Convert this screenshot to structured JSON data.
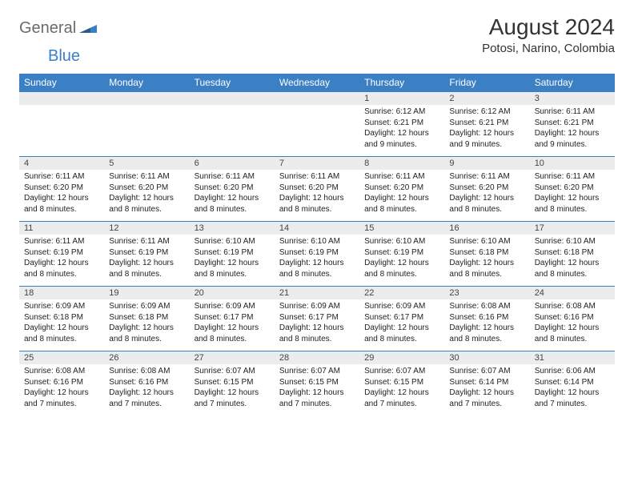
{
  "brand": {
    "general": "General",
    "blue": "Blue",
    "icon_color": "#3b7fc4"
  },
  "title": "August 2024",
  "location": "Potosi, Narino, Colombia",
  "colors": {
    "header_bg": "#3b7fc4",
    "header_fg": "#ffffff",
    "daynum_bg": "#ececec",
    "border": "#3b7fc4",
    "text": "#222222"
  },
  "day_headers": [
    "Sunday",
    "Monday",
    "Tuesday",
    "Wednesday",
    "Thursday",
    "Friday",
    "Saturday"
  ],
  "weeks": [
    [
      null,
      null,
      null,
      null,
      {
        "n": "1",
        "sr": "6:12 AM",
        "ss": "6:21 PM",
        "dl": "12 hours and 9 minutes."
      },
      {
        "n": "2",
        "sr": "6:12 AM",
        "ss": "6:21 PM",
        "dl": "12 hours and 9 minutes."
      },
      {
        "n": "3",
        "sr": "6:11 AM",
        "ss": "6:21 PM",
        "dl": "12 hours and 9 minutes."
      }
    ],
    [
      {
        "n": "4",
        "sr": "6:11 AM",
        "ss": "6:20 PM",
        "dl": "12 hours and 8 minutes."
      },
      {
        "n": "5",
        "sr": "6:11 AM",
        "ss": "6:20 PM",
        "dl": "12 hours and 8 minutes."
      },
      {
        "n": "6",
        "sr": "6:11 AM",
        "ss": "6:20 PM",
        "dl": "12 hours and 8 minutes."
      },
      {
        "n": "7",
        "sr": "6:11 AM",
        "ss": "6:20 PM",
        "dl": "12 hours and 8 minutes."
      },
      {
        "n": "8",
        "sr": "6:11 AM",
        "ss": "6:20 PM",
        "dl": "12 hours and 8 minutes."
      },
      {
        "n": "9",
        "sr": "6:11 AM",
        "ss": "6:20 PM",
        "dl": "12 hours and 8 minutes."
      },
      {
        "n": "10",
        "sr": "6:11 AM",
        "ss": "6:20 PM",
        "dl": "12 hours and 8 minutes."
      }
    ],
    [
      {
        "n": "11",
        "sr": "6:11 AM",
        "ss": "6:19 PM",
        "dl": "12 hours and 8 minutes."
      },
      {
        "n": "12",
        "sr": "6:11 AM",
        "ss": "6:19 PM",
        "dl": "12 hours and 8 minutes."
      },
      {
        "n": "13",
        "sr": "6:10 AM",
        "ss": "6:19 PM",
        "dl": "12 hours and 8 minutes."
      },
      {
        "n": "14",
        "sr": "6:10 AM",
        "ss": "6:19 PM",
        "dl": "12 hours and 8 minutes."
      },
      {
        "n": "15",
        "sr": "6:10 AM",
        "ss": "6:19 PM",
        "dl": "12 hours and 8 minutes."
      },
      {
        "n": "16",
        "sr": "6:10 AM",
        "ss": "6:18 PM",
        "dl": "12 hours and 8 minutes."
      },
      {
        "n": "17",
        "sr": "6:10 AM",
        "ss": "6:18 PM",
        "dl": "12 hours and 8 minutes."
      }
    ],
    [
      {
        "n": "18",
        "sr": "6:09 AM",
        "ss": "6:18 PM",
        "dl": "12 hours and 8 minutes."
      },
      {
        "n": "19",
        "sr": "6:09 AM",
        "ss": "6:18 PM",
        "dl": "12 hours and 8 minutes."
      },
      {
        "n": "20",
        "sr": "6:09 AM",
        "ss": "6:17 PM",
        "dl": "12 hours and 8 minutes."
      },
      {
        "n": "21",
        "sr": "6:09 AM",
        "ss": "6:17 PM",
        "dl": "12 hours and 8 minutes."
      },
      {
        "n": "22",
        "sr": "6:09 AM",
        "ss": "6:17 PM",
        "dl": "12 hours and 8 minutes."
      },
      {
        "n": "23",
        "sr": "6:08 AM",
        "ss": "6:16 PM",
        "dl": "12 hours and 8 minutes."
      },
      {
        "n": "24",
        "sr": "6:08 AM",
        "ss": "6:16 PM",
        "dl": "12 hours and 8 minutes."
      }
    ],
    [
      {
        "n": "25",
        "sr": "6:08 AM",
        "ss": "6:16 PM",
        "dl": "12 hours and 7 minutes."
      },
      {
        "n": "26",
        "sr": "6:08 AM",
        "ss": "6:16 PM",
        "dl": "12 hours and 7 minutes."
      },
      {
        "n": "27",
        "sr": "6:07 AM",
        "ss": "6:15 PM",
        "dl": "12 hours and 7 minutes."
      },
      {
        "n": "28",
        "sr": "6:07 AM",
        "ss": "6:15 PM",
        "dl": "12 hours and 7 minutes."
      },
      {
        "n": "29",
        "sr": "6:07 AM",
        "ss": "6:15 PM",
        "dl": "12 hours and 7 minutes."
      },
      {
        "n": "30",
        "sr": "6:07 AM",
        "ss": "6:14 PM",
        "dl": "12 hours and 7 minutes."
      },
      {
        "n": "31",
        "sr": "6:06 AM",
        "ss": "6:14 PM",
        "dl": "12 hours and 7 minutes."
      }
    ]
  ],
  "labels": {
    "sunrise": "Sunrise:",
    "sunset": "Sunset:",
    "daylight": "Daylight:"
  }
}
